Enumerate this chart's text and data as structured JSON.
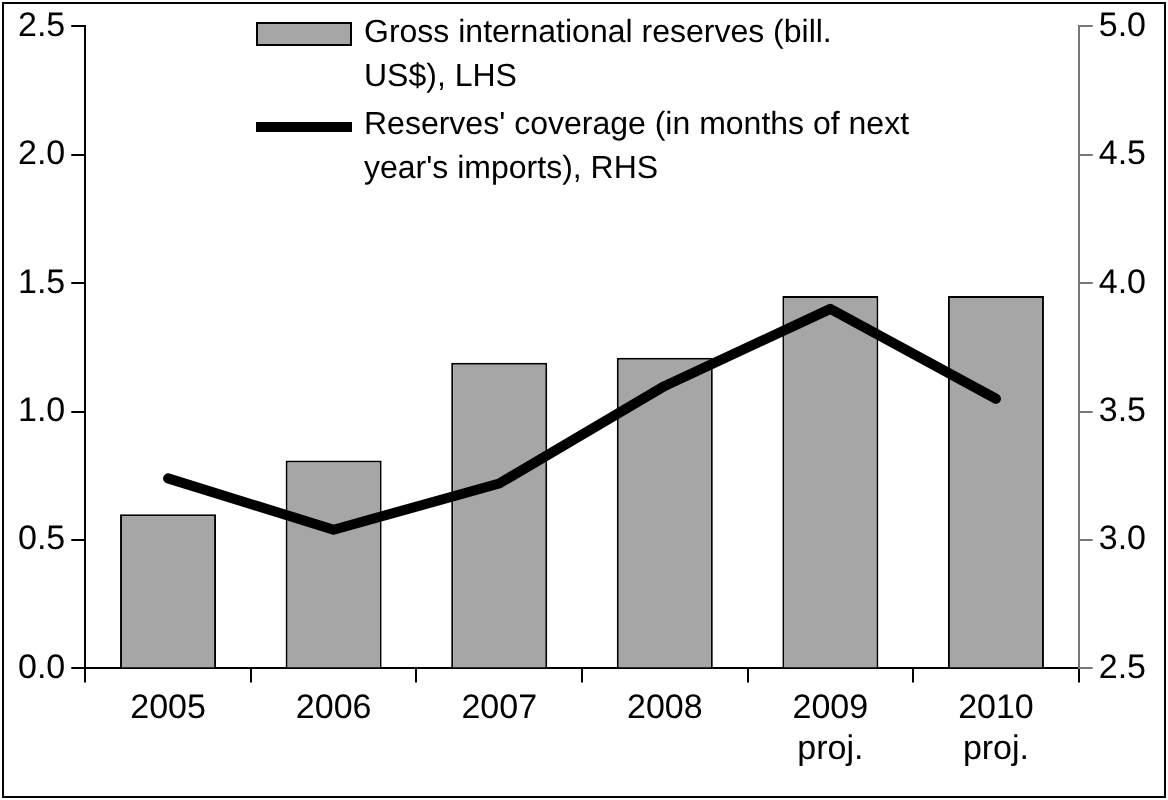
{
  "chart_data": {
    "type": "bar",
    "categories": [
      "2005",
      "2006",
      "2007",
      "2008",
      "2009\nproj.",
      "2010\nproj."
    ],
    "series": [
      {
        "name": "Gross international reserves (bill. US$), LHS",
        "color": "#a6a6a6",
        "values": [
          0.6,
          0.81,
          1.19,
          1.21,
          1.45,
          1.45
        ]
      },
      {
        "name": "Reserves' coverage (in months of next year's imports), RHS",
        "type": "line",
        "axis": "y2",
        "color": "#000000",
        "values": [
          3.24,
          3.04,
          3.22,
          3.6,
          3.9,
          3.55
        ]
      }
    ],
    "ylim": [
      0,
      2.5
    ],
    "yticks": [
      {
        "value": 0,
        "label": "0.0"
      },
      {
        "value": 0.5,
        "label": "0.5"
      },
      {
        "value": 1,
        "label": "1.0"
      },
      {
        "value": 1.5,
        "label": "1.5"
      },
      {
        "value": 2,
        "label": "2.0"
      },
      {
        "value": 2.5,
        "label": "2.5"
      }
    ],
    "y2lim": [
      2.5,
      5
    ],
    "y2ticks": [
      {
        "value": 2.5,
        "label": "2.5"
      },
      {
        "value": 3,
        "label": "3.0"
      },
      {
        "value": 3.5,
        "label": "3.5"
      },
      {
        "value": 4,
        "label": "4.0"
      },
      {
        "value": 4.5,
        "label": "4.5"
      },
      {
        "value": 5,
        "label": "5.0"
      }
    ],
    "grid": false,
    "legend": "top",
    "marker": "none",
    "line_style": "solid"
  }
}
